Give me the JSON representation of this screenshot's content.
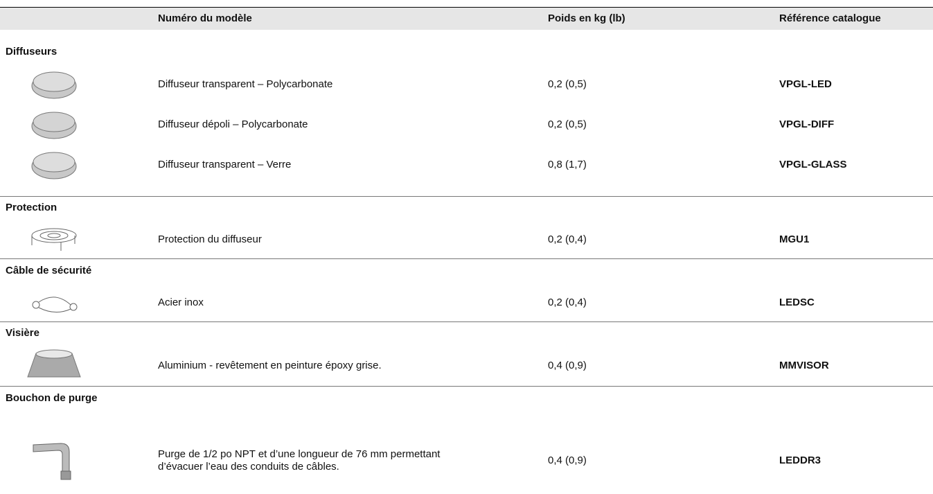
{
  "header": {
    "columns": [
      "Numéro du modèle",
      "Poids en kg (lb)",
      "Référence catalogue"
    ]
  },
  "sections": [
    {
      "title": "Diffuseurs",
      "items": [
        {
          "model": "Diffuseur transparent – Polycarbonate",
          "weight": "0,2 (0,5)",
          "catalogue": "VPGL-LED"
        },
        {
          "model": "Diffuseur dépoli – Polycarbonate",
          "weight": "0,2 (0,5)",
          "catalogue": "VPGL-DIFF"
        },
        {
          "model": "Diffuseur transparent – Verre",
          "weight": "0,8 (1,7)",
          "catalogue": "VPGL-GLASS"
        }
      ]
    },
    {
      "title": "Protection",
      "items": [
        {
          "model": "Protection du diffuseur",
          "weight": "0,2 (0,4)",
          "catalogue": "MGU1"
        }
      ]
    },
    {
      "title": "Câble de sécurité",
      "items": [
        {
          "model": "Acier inox",
          "weight": "0,2 (0,4)",
          "catalogue": "LEDSC"
        }
      ]
    },
    {
      "title": "Visière",
      "items": [
        {
          "model": "Aluminium - revêtement en peinture époxy grise.",
          "weight": "0,4 (0,9)",
          "catalogue": "MMVISOR"
        }
      ]
    },
    {
      "title": "Bouchon de purge",
      "items": [
        {
          "model": "Purge de 1/2 po NPT et d’une longueur de 76 mm permettant d’évacuer l’eau des conduits de câbles.",
          "weight": "0,4 (0,9)",
          "catalogue": "LEDDR3"
        }
      ]
    }
  ]
}
